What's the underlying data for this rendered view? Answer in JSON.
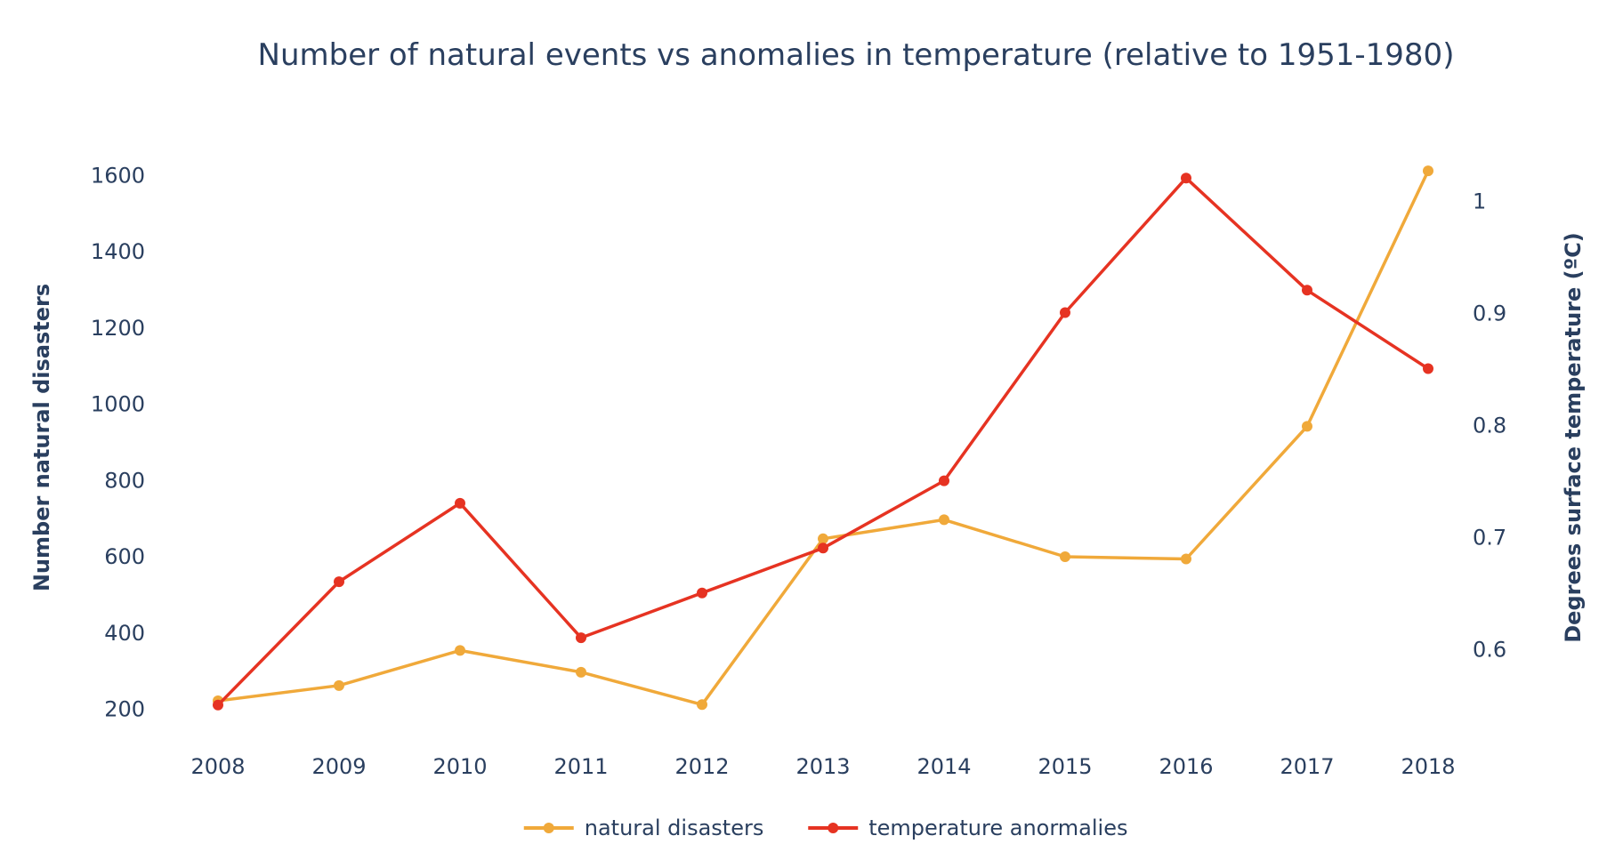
{
  "chart_data": {
    "type": "line",
    "title": "Number of natural events vs anomalies in temperature (relative to 1951-1980)",
    "xlabel": "",
    "ylabel": "Number natural disasters",
    "y2label": "Degrees surface temperature (ºC)",
    "x": [
      "2008",
      "2009",
      "2010",
      "2011",
      "2012",
      "2013",
      "2014",
      "2015",
      "2016",
      "2017",
      "2018"
    ],
    "ylim": [
      150,
      1650
    ],
    "y2lim": [
      0.53,
      1.04
    ],
    "yticks": [
      200,
      400,
      600,
      800,
      1000,
      1200,
      1400,
      1600
    ],
    "y2ticks": [
      0.6,
      0.7,
      0.8,
      0.9,
      1
    ],
    "y2tick_labels": [
      "0.6",
      "0.7",
      "0.8",
      "0.9",
      "1"
    ],
    "grid": false,
    "legend_position": "bottom-center",
    "series": [
      {
        "name": "natural disasters",
        "axis": "y",
        "color": "#f0a93a",
        "values": [
          220,
          260,
          352,
          295,
          210,
          645,
          695,
          598,
          592,
          940,
          1610
        ]
      },
      {
        "name": "temperature anormalies",
        "axis": "y2",
        "color": "#e63322",
        "values": [
          0.55,
          0.66,
          0.73,
          0.61,
          0.65,
          0.69,
          0.75,
          0.9,
          1.02,
          0.92,
          0.85
        ]
      }
    ]
  }
}
